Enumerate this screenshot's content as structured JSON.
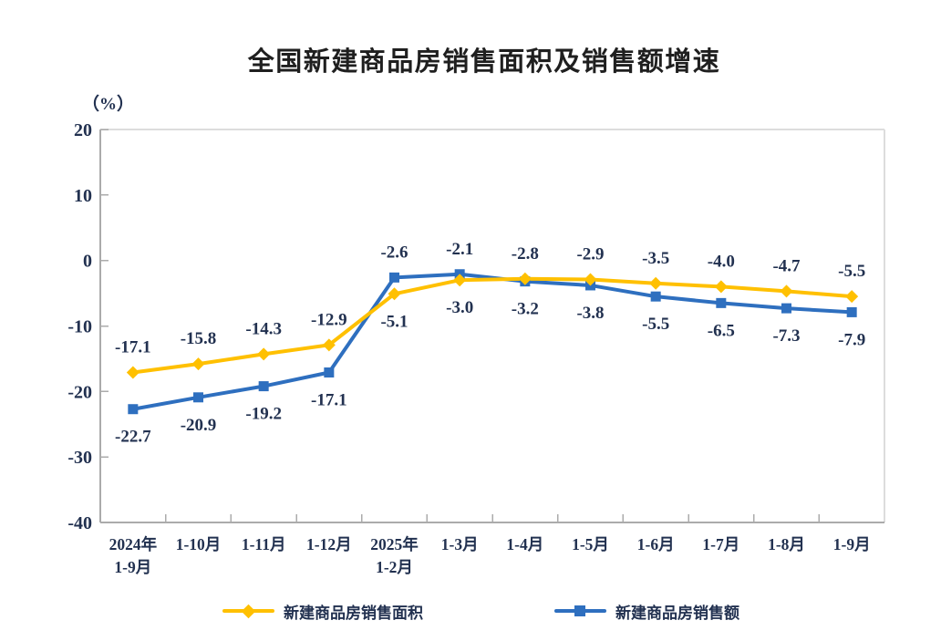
{
  "header": {
    "title": "全国新建商品房销售面积及销售额增速"
  },
  "axis_unit_label": "（%）",
  "legend": {
    "items": [
      {
        "label": "新建商品房销售面积",
        "color": "#FFC000",
        "marker": "diamond"
      },
      {
        "label": "新建商品房销售额",
        "color": "#2E6FBF",
        "marker": "square"
      }
    ]
  },
  "chart_data": {
    "type": "line",
    "title": "全国新建商品房销售面积及销售额增速",
    "ylabel": "（%）",
    "xlabel": "",
    "categories": [
      "2024年\n1-9月",
      "1-10月",
      "1-11月",
      "1-12月",
      "2025年\n1-2月",
      "1-3月",
      "1-4月",
      "1-5月",
      "1-6月",
      "1-7月",
      "1-8月",
      "1-9月"
    ],
    "series": [
      {
        "name": "新建商品房销售面积",
        "color": "#FFC000",
        "marker": "diamond",
        "values": [
          -17.1,
          -15.8,
          -14.3,
          -12.9,
          -5.1,
          -3.0,
          -2.8,
          -2.9,
          -3.5,
          -4.0,
          -4.7,
          -5.5
        ]
      },
      {
        "name": "新建商品房销售额",
        "color": "#2E6FBF",
        "marker": "square",
        "values": [
          -22.7,
          -20.9,
          -19.2,
          -17.1,
          -2.6,
          -2.1,
          -3.2,
          -3.8,
          -5.5,
          -6.5,
          -7.3,
          -7.9
        ]
      }
    ],
    "ylim": [
      -40,
      20
    ],
    "yticks": [
      20,
      10,
      0,
      -10,
      -20,
      -30,
      -40
    ],
    "grid": false,
    "data_labels": true,
    "legend_position": "bottom",
    "colors": {
      "axis": "#ABABAB",
      "plot_border": "#DDDDDD",
      "text": "#223150"
    }
  }
}
